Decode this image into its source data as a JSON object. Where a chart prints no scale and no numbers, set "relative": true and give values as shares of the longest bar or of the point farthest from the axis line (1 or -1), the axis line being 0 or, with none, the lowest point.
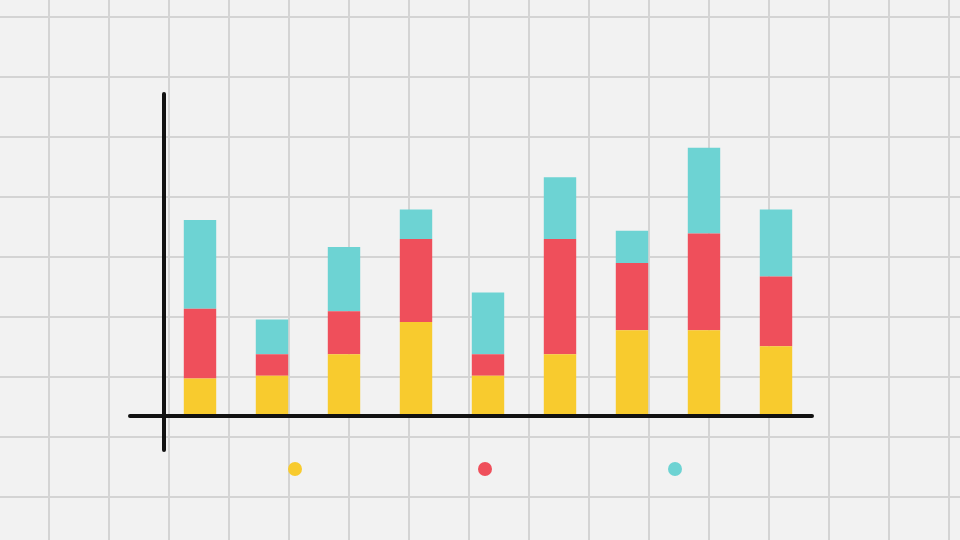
{
  "chart_data": {
    "type": "bar",
    "stacked": true,
    "relative": true,
    "categories": [
      null,
      null,
      null,
      null,
      null,
      null,
      null,
      null,
      null
    ],
    "series": [
      {
        "color": "#f8cb2e",
        "values": [
          0.14,
          0.15,
          0.23,
          0.35,
          0.15,
          0.23,
          0.32,
          0.32,
          0.26
        ]
      },
      {
        "color": "#ef4f5b",
        "values": [
          0.26,
          0.08,
          0.16,
          0.31,
          0.08,
          0.43,
          0.25,
          0.36,
          0.26
        ]
      },
      {
        "color": "#6dd3d3",
        "values": [
          0.33,
          0.13,
          0.24,
          0.11,
          0.23,
          0.23,
          0.12,
          0.32,
          0.25
        ]
      }
    ]
  }
}
